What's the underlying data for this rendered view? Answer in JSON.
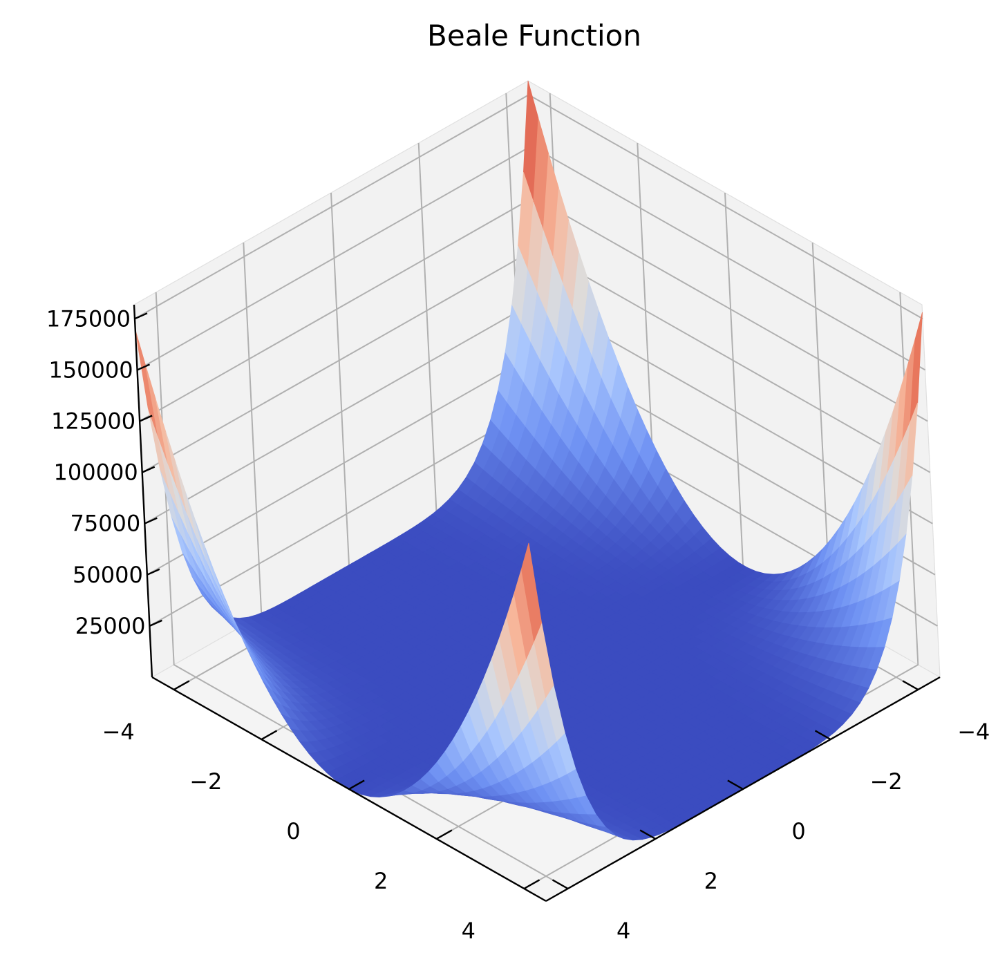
{
  "chart_data": {
    "type": "surface3d",
    "title": "Beale Function",
    "xlabel": "",
    "ylabel": "",
    "zlabel": "",
    "x_ticks": [
      "−4",
      "−2",
      "0",
      "2",
      "4"
    ],
    "y_ticks": [
      "−4",
      "−2",
      "0",
      "2",
      "4"
    ],
    "z_ticks": [
      "25000",
      "50000",
      "75000",
      "100000",
      "125000",
      "150000",
      "175000"
    ],
    "xlim": [
      -4.5,
      4.5
    ],
    "ylim": [
      -4.5,
      4.5
    ],
    "zlim": [
      0,
      181853.61
    ],
    "colormap": "coolwarm",
    "grid": true,
    "view": {
      "elev": 30,
      "azim": 45
    },
    "colormap_stops": [
      "#3b4cc0",
      "#6f92f3",
      "#aac7fd",
      "#dddcdc",
      "#f7b89c",
      "#e7745b",
      "#b40426"
    ]
  }
}
